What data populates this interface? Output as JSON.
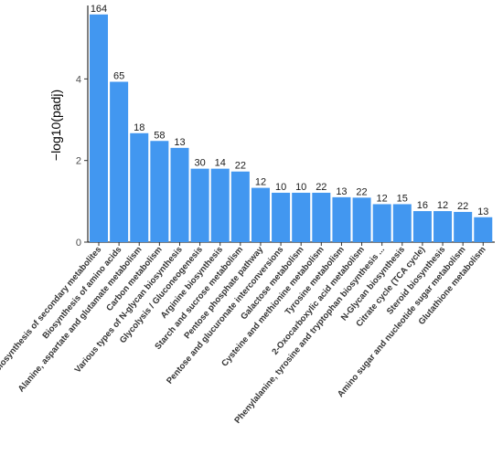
{
  "chart_data": {
    "type": "bar",
    "ylabel": "−log10(padj)",
    "xlabel": "",
    "title": "",
    "ylim": [
      0,
      5.8
    ],
    "yticks": [
      0,
      2,
      4
    ],
    "grid": false,
    "bar_color": "#4297f0",
    "categories": [
      "Biosynthesis of secondary metabolites",
      "Biosynthesis of amino acids",
      "Alanine, aspartate and glutamate metabolism",
      "Carbon metabolism",
      "Various types of N-glycan biosynthesis",
      "Glycolysis / Gluconeogenesis",
      "Arginine biosynthesis",
      "Starch and sucrose metabolism",
      "Pentose phosphate pathway",
      "Pentose and glucuronate interconversions",
      "Galactose metabolism",
      "Cysteine and methionine metabolism",
      "Tyrosine metabolism",
      "2-Oxocarboxylic acid metabolism",
      "Phenylalanine, tyrosine and tryptophan biosynthesis ...",
      "N-Glycan biosynthesis",
      "Citrate cycle (TCA cycle)",
      "Steroid biosynthesis",
      "Amino sugar and nucleotide sugar metabolism",
      "Glutathione metabolism"
    ],
    "values": [
      5.58,
      3.93,
      2.67,
      2.48,
      2.31,
      1.8,
      1.8,
      1.73,
      1.33,
      1.21,
      1.21,
      1.21,
      1.1,
      1.09,
      0.93,
      0.93,
      0.76,
      0.76,
      0.74,
      0.61
    ],
    "bar_labels": [
      "164",
      "65",
      "18",
      "58",
      "13",
      "30",
      "14",
      "22",
      "12",
      "10",
      "10",
      "22",
      "13",
      "22",
      "12",
      "15",
      "16",
      "12",
      "22",
      "13"
    ]
  }
}
